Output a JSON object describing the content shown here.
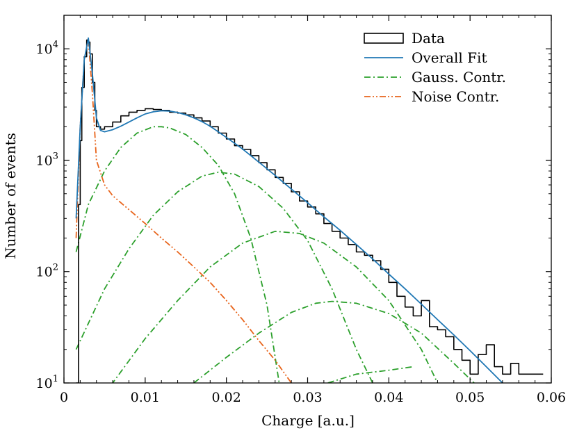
{
  "chart_data": {
    "type": "line",
    "xlabel": "Charge [a.u.]",
    "ylabel": "Number of events",
    "xlim": [
      0,
      0.06
    ],
    "ylim": [
      10,
      20000
    ],
    "yscale": "log",
    "grid": false,
    "legend_position": "top-right",
    "x_ticks": [
      {
        "value": 0,
        "label": "0"
      },
      {
        "value": 0.01,
        "label": "0.01"
      },
      {
        "value": 0.02,
        "label": "0.02"
      },
      {
        "value": 0.03,
        "label": "0.03"
      },
      {
        "value": 0.04,
        "label": "0.04"
      },
      {
        "value": 0.05,
        "label": "0.05"
      },
      {
        "value": 0.06,
        "label": "0.06"
      }
    ],
    "y_ticks": [
      {
        "value": 10,
        "base": "10",
        "exp": "1"
      },
      {
        "value": 100,
        "base": "10",
        "exp": "2"
      },
      {
        "value": 1000,
        "base": "10",
        "exp": "3"
      },
      {
        "value": 10000,
        "base": "10",
        "exp": "4"
      }
    ],
    "legend": [
      {
        "label": "Data",
        "style": "box",
        "color": "#000000"
      },
      {
        "label": "Overall Fit",
        "style": "solid",
        "color": "#1f77b4"
      },
      {
        "label": "Gauss. Contr.",
        "style": "dashdot",
        "color": "#2ca02c"
      },
      {
        "label": "Noise Contr.",
        "style": "dashdotdot",
        "color": "#e8641b"
      }
    ],
    "series": [
      {
        "name": "Data",
        "style": "step",
        "color": "#000000",
        "x": [
          0.0015,
          0.0018,
          0.002,
          0.0022,
          0.0025,
          0.0028,
          0.003,
          0.0032,
          0.0035,
          0.0038,
          0.004,
          0.0045,
          0.005,
          0.006,
          0.007,
          0.008,
          0.009,
          0.01,
          0.011,
          0.012,
          0.013,
          0.014,
          0.015,
          0.016,
          0.017,
          0.018,
          0.019,
          0.02,
          0.021,
          0.022,
          0.023,
          0.024,
          0.025,
          0.026,
          0.027,
          0.028,
          0.029,
          0.03,
          0.031,
          0.032,
          0.033,
          0.034,
          0.035,
          0.036,
          0.037,
          0.038,
          0.039,
          0.04,
          0.041,
          0.042,
          0.043,
          0.044,
          0.045,
          0.046,
          0.047,
          0.048,
          0.049,
          0.05,
          0.051,
          0.052,
          0.053,
          0.054,
          0.055,
          0.056,
          0.057,
          0.058,
          0.059
        ],
        "y": [
          10,
          400,
          1500,
          4500,
          8500,
          12000,
          11500,
          9000,
          5000,
          2800,
          2000,
          1900,
          2000,
          2200,
          2500,
          2700,
          2800,
          2900,
          2850,
          2800,
          2700,
          2650,
          2550,
          2400,
          2250,
          2000,
          1750,
          1550,
          1350,
          1250,
          1100,
          950,
          820,
          700,
          620,
          520,
          430,
          380,
          330,
          270,
          230,
          200,
          175,
          150,
          140,
          125,
          105,
          80,
          60,
          48,
          40,
          55,
          32,
          30,
          26,
          20,
          16,
          12,
          18,
          22,
          14,
          12,
          15,
          12,
          12,
          12,
          12
        ]
      },
      {
        "name": "Overall Fit",
        "style": "solid",
        "color": "#1f77b4",
        "x": [
          0.0015,
          0.002,
          0.0025,
          0.003,
          0.0035,
          0.004,
          0.0045,
          0.005,
          0.006,
          0.007,
          0.008,
          0.009,
          0.01,
          0.011,
          0.012,
          0.013,
          0.014,
          0.015,
          0.016,
          0.017,
          0.018,
          0.019,
          0.02,
          0.022,
          0.024,
          0.026,
          0.028,
          0.03,
          0.032,
          0.034,
          0.036,
          0.038,
          0.04,
          0.042,
          0.044,
          0.046,
          0.048,
          0.05,
          0.052,
          0.054
        ],
        "y": [
          300,
          2000,
          8000,
          12500,
          6000,
          2400,
          1850,
          1800,
          1880,
          2020,
          2200,
          2400,
          2600,
          2720,
          2780,
          2760,
          2680,
          2560,
          2400,
          2220,
          2020,
          1800,
          1600,
          1260,
          960,
          730,
          550,
          415,
          310,
          235,
          175,
          130,
          95,
          70,
          51,
          37,
          27,
          19.5,
          14,
          10
        ]
      },
      {
        "name": "Gauss. Contr.",
        "style": "dashdot",
        "color": "#2ca02c",
        "segments": [
          {
            "x": [
              0.0015,
              0.003,
              0.005,
              0.007,
              0.009,
              0.011,
              0.012,
              0.013,
              0.015,
              0.017,
              0.019,
              0.021,
              0.023,
              0.025,
              0.0265
            ],
            "y": [
              150,
              400,
              800,
              1300,
              1750,
              2000,
              2000,
              1950,
              1700,
              1300,
              900,
              500,
              200,
              50,
              10
            ]
          },
          {
            "x": [
              0.0015,
              0.005,
              0.008,
              0.011,
              0.014,
              0.017,
              0.019,
              0.021,
              0.024,
              0.027,
              0.03,
              0.033,
              0.036,
              0.038
            ],
            "y": [
              20,
              70,
              160,
              320,
              520,
              720,
              780,
              750,
              580,
              370,
              190,
              70,
              20,
              10
            ]
          },
          {
            "x": [
              0.0015,
              0.006,
              0.01,
              0.014,
              0.018,
              0.022,
              0.026,
              0.029,
              0.032,
              0.036,
              0.04,
              0.044,
              0.046
            ],
            "y": [
              3,
              10,
              25,
              55,
              110,
              180,
              230,
              220,
              180,
              110,
              55,
              20,
              10
            ]
          },
          {
            "x": [
              0.016,
              0.02,
              0.024,
              0.028,
              0.031,
              0.033,
              0.036,
              0.04,
              0.044,
              0.048,
              0.0505
            ],
            "y": [
              10,
              17,
              28,
              43,
              52,
              54,
              52,
              42,
              28,
              15,
              10
            ]
          },
          {
            "x": [
              0.0325,
              0.036,
              0.04,
              0.043
            ],
            "y": [
              10,
              12,
              13,
              14
            ]
          }
        ]
      },
      {
        "name": "Noise Contr.",
        "style": "dashdotdot",
        "color": "#e8641b",
        "x": [
          0.0015,
          0.002,
          0.0025,
          0.003,
          0.0035,
          0.004,
          0.005,
          0.006,
          0.008,
          0.01,
          0.012,
          0.014,
          0.016,
          0.018,
          0.02,
          0.022,
          0.024,
          0.026,
          0.028
        ],
        "y": [
          200,
          2000,
          8000,
          12000,
          4000,
          1000,
          600,
          480,
          360,
          270,
          200,
          150,
          110,
          80,
          55,
          37,
          24,
          16,
          10
        ]
      }
    ]
  }
}
